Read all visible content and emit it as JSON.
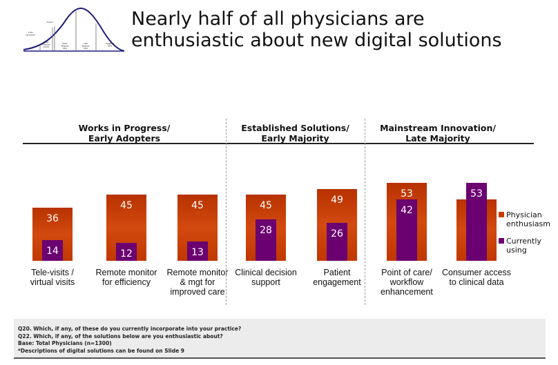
{
  "title": [
    "Nearly half of all physicians are",
    "enthusiastic about new digital solutions"
  ],
  "logo": {
    "labels": [
      "2.5% Innovators",
      "Chasm",
      "Early Adopters 13.5%",
      "Early Majority 34%",
      "Late Majority 34%",
      "Laggards 16%"
    ]
  },
  "colors": {
    "enthusiasm": "#C83C00",
    "using": "#6B0070"
  },
  "chart_data": {
    "type": "bar",
    "groups": [
      {
        "label": [
          "Works in Progress/",
          "Early Adopters"
        ],
        "categories": [
          0,
          1,
          2
        ]
      },
      {
        "label": [
          "Established Solutions/",
          "Early Majority"
        ],
        "categories": [
          3,
          4
        ]
      },
      {
        "label": [
          "Mainstream Innovation/",
          "Late Majority"
        ],
        "categories": [
          5,
          6
        ]
      }
    ],
    "categories": [
      [
        "Tele-visits /",
        "virtual visits"
      ],
      [
        "Remote monitor",
        "for efficiency"
      ],
      [
        "Remote monitor",
        "& mgt for",
        "improved care"
      ],
      [
        "Clinical decision",
        "support"
      ],
      [
        "Patient",
        "engagement"
      ],
      [
        "Point of care/",
        "workflow",
        "enhancement"
      ],
      [
        "Consumer access",
        "to clinical data"
      ]
    ],
    "series": [
      {
        "name": "Physician enthusiasm",
        "values": [
          36,
          45,
          45,
          45,
          49,
          53,
          42
        ],
        "labels": [
          "36",
          "45",
          "45",
          "45",
          "49",
          "53",
          ""
        ]
      },
      {
        "name": "Currently using",
        "values": [
          14,
          12,
          13,
          28,
          26,
          42,
          53
        ],
        "labels": [
          "14",
          "12",
          "13",
          "28",
          "26",
          "42",
          "53"
        ]
      }
    ],
    "legend": {
      "placement": "right",
      "entries": [
        [
          "Physician",
          "enthusiasm"
        ],
        [
          "Currently",
          "using"
        ]
      ]
    },
    "grid": false
  },
  "footnotes": [
    "Q20. Which, if any, of these do you currently incorporate into your practice?",
    "Q22. Which, if any, of the solutions below are you enthusiastic about?",
    "Base: Total Physicians (n=1300)",
    "*Descriptions of digital solutions can be found on Slide 9"
  ]
}
